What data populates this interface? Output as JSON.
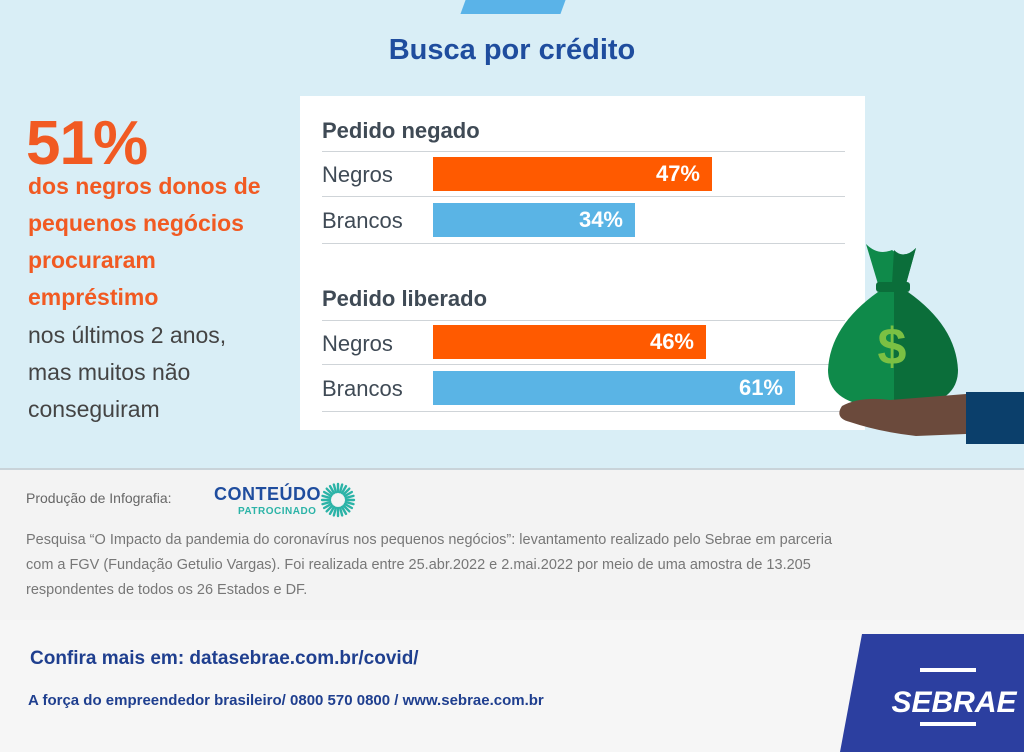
{
  "title": "Busca por crédito",
  "highlight": {
    "percent": "51%",
    "bold_lines": [
      "dos negros donos de",
      "pequenos negócios",
      "procuraram",
      "empréstimo"
    ],
    "regular_lines": [
      "nos últimos 2 anos,",
      "mas muitos não",
      "conseguiram"
    ]
  },
  "chart_data": [
    {
      "type": "bar",
      "title": "Pedido negado",
      "categories": [
        "Negros",
        "Brancos"
      ],
      "values": [
        47,
        34
      ],
      "value_labels": [
        "47%",
        "34%"
      ],
      "unit": "%",
      "colors": [
        "#ff5a00",
        "#5ab4e5"
      ],
      "orientation": "horizontal",
      "xlim": [
        0,
        70
      ],
      "grid": false
    },
    {
      "type": "bar",
      "title": "Pedido liberado",
      "categories": [
        "Negros",
        "Brancos"
      ],
      "values": [
        46,
        61
      ],
      "value_labels": [
        "46%",
        "61%"
      ],
      "unit": "%",
      "colors": [
        "#ff5a00",
        "#5ab4e5"
      ],
      "orientation": "horizontal",
      "xlim": [
        0,
        70
      ],
      "grid": false
    }
  ],
  "illustration": {
    "icon": "money-bag-icon",
    "symbol": "$",
    "colors": [
      "#0f8a4a",
      "#0b6e3a",
      "#7bc043",
      "#0b3f6b"
    ]
  },
  "production": {
    "label": "Produção de Infografia:",
    "logo_top": "CONTEÚDO",
    "logo_bottom": "PATROCINADO"
  },
  "source": [
    "Pesquisa “O Impacto da pandemia do coronavírus nos pequenos negócios”: levantamento realizado pelo Sebrae em parceria",
    "com a FGV (Fundação Getulio Vargas). Foi realizada entre 25.abr.2022 e 2.mai.2022 por meio de uma amostra de 13.205",
    "respondentes de todos os 26 Estados e DF."
  ],
  "footer": {
    "more": "Confira mais em: datasebrae.com.br/covid/",
    "tagline": "A força do empreendedor brasileiro/ 0800 570 0800 / www.sebrae.com.br",
    "brand": "SEBRAE"
  }
}
